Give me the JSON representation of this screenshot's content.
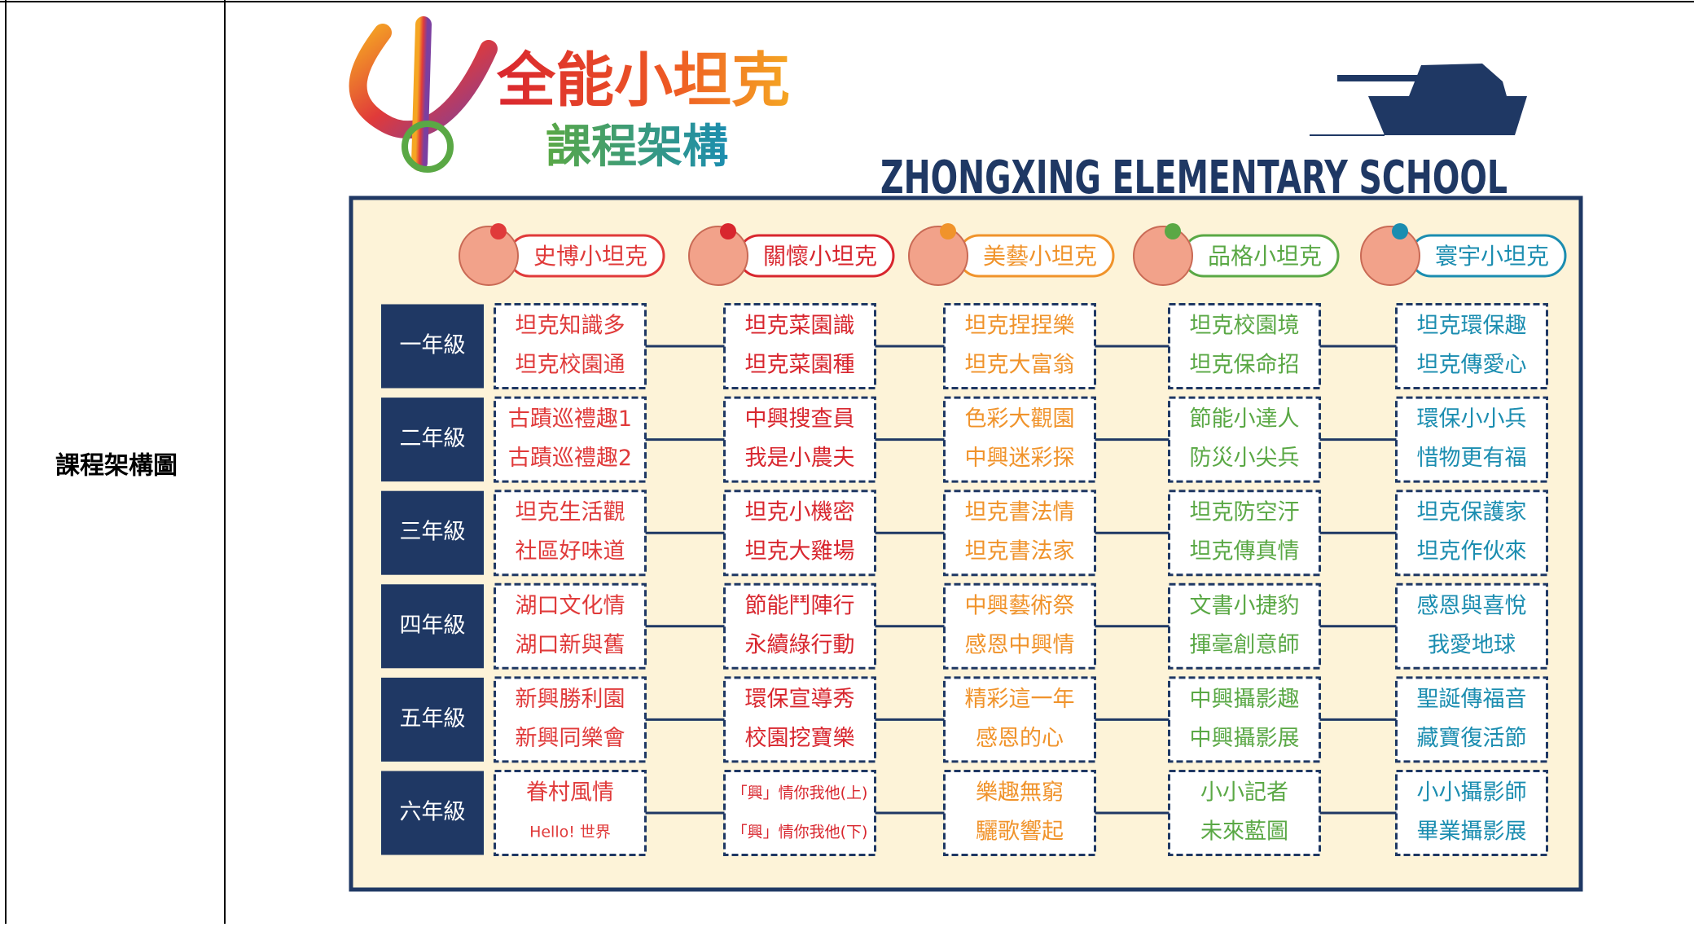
{
  "table": {
    "label": "課程架構圖"
  },
  "diagram": {
    "title": "全能小坦克",
    "subtitle": "課程架構",
    "school": "ZHONGXING ELEMENTARY SCHOOL",
    "tracks": [
      {
        "name": "史博小坦克",
        "color": "#e03a3a"
      },
      {
        "name": "關懷小坦克",
        "color": "#d8262e"
      },
      {
        "name": "美藝小坦克",
        "color": "#f0932b"
      },
      {
        "name": "品格小坦克",
        "color": "#5aa845"
      },
      {
        "name": "寰宇小坦克",
        "color": "#1b8db0"
      }
    ],
    "grades": [
      "一年級",
      "二年級",
      "三年級",
      "四年級",
      "五年級",
      "六年級"
    ],
    "rows": [
      [
        [
          "坦克知識多",
          "坦克校園通"
        ],
        [
          "坦克菜園識",
          "坦克菜園種"
        ],
        [
          "坦克捏捏樂",
          "坦克大富翁"
        ],
        [
          "坦克校園境",
          "坦克保命招"
        ],
        [
          "坦克環保趣",
          "坦克傳愛心"
        ]
      ],
      [
        [
          "古蹟巡禮趣1",
          "古蹟巡禮趣2"
        ],
        [
          "中興搜查員",
          "我是小農夫"
        ],
        [
          "色彩大觀園",
          "中興迷彩探"
        ],
        [
          "節能小達人",
          "防災小尖兵"
        ],
        [
          "環保小小兵",
          "惜物更有福"
        ]
      ],
      [
        [
          "坦克生活觀",
          "社區好味道"
        ],
        [
          "坦克小機密",
          "坦克大雞場"
        ],
        [
          "坦克書法情",
          "坦克書法家"
        ],
        [
          "坦克防空汙",
          "坦克傳真情"
        ],
        [
          "坦克保護家",
          "坦克作伙來"
        ]
      ],
      [
        [
          "湖口文化情",
          "湖口新與舊"
        ],
        [
          "節能鬥陣行",
          "永續綠行動"
        ],
        [
          "中興藝術祭",
          "感恩中興情"
        ],
        [
          "文書小捷豹",
          "揮毫創意師"
        ],
        [
          "感恩與喜悅",
          "我愛地球"
        ]
      ],
      [
        [
          "新興勝利園",
          "新興同樂會"
        ],
        [
          "環保宣導秀",
          "校園挖寶樂"
        ],
        [
          "精彩這一年",
          "感恩的心"
        ],
        [
          "中興攝影趣",
          "中興攝影展"
        ],
        [
          "聖誕傳福音",
          "藏寶復活節"
        ]
      ],
      [
        [
          "眷村風情",
          "Hello! 世界"
        ],
        [
          "「興」情你我他(上)",
          "「興」情你我他(下)"
        ],
        [
          "樂趣無窮",
          "驪歌響起"
        ],
        [
          "小小記者",
          "未來藍圖"
        ],
        [
          "小小攝影師",
          "畢業攝影展"
        ]
      ]
    ]
  }
}
